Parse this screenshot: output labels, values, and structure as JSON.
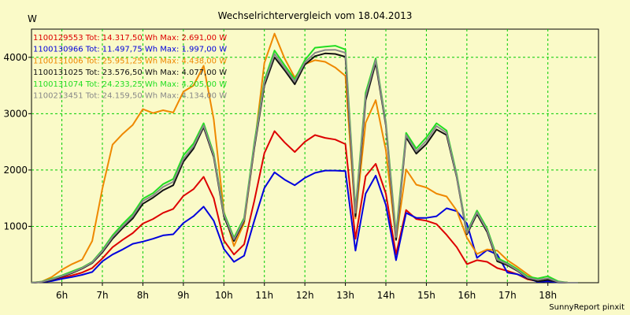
{
  "chart_data": {
    "type": "line",
    "title": "Wechselrichtervergleich vom 18.04.2013",
    "ylabel": "W",
    "xlabel": "",
    "x_ticks": [
      6,
      7,
      8,
      9,
      10,
      11,
      12,
      13,
      14,
      15,
      16,
      17,
      18
    ],
    "x_tick_labels": [
      "6h",
      "7h",
      "8h",
      "9h",
      "10h",
      "11h",
      "12h",
      "13h",
      "14h",
      "15h",
      "16h",
      "17h",
      "18h"
    ],
    "y_ticks": [
      1000,
      2000,
      3000,
      4000
    ],
    "y_tick_labels": [
      "1000",
      "2000",
      "3000",
      "4000"
    ],
    "xlim": [
      5.25,
      19.25
    ],
    "ylim": [
      0,
      4500
    ],
    "grid": true,
    "legend_position": "top-left",
    "x": [
      5.25,
      5.5,
      5.75,
      6.0,
      6.25,
      6.5,
      6.75,
      7.0,
      7.25,
      7.5,
      7.75,
      8.0,
      8.25,
      8.5,
      8.75,
      9.0,
      9.25,
      9.5,
      9.75,
      10.0,
      10.25,
      10.5,
      10.75,
      11.0,
      11.25,
      11.5,
      11.75,
      12.0,
      12.25,
      12.5,
      12.75,
      13.0,
      13.25,
      13.5,
      13.75,
      14.0,
      14.25,
      14.5,
      14.75,
      15.0,
      15.25,
      15.5,
      15.75,
      16.0,
      16.25,
      16.5,
      16.75,
      17.0,
      17.25,
      17.5,
      17.75,
      18.0,
      18.25,
      18.5,
      18.75
    ],
    "series": [
      {
        "name": "1100129553",
        "label": "1100129553 Tot: 14.317,50 Wh Max: 2.691,00 W",
        "color": "#dd0000",
        "values": [
          0,
          10,
          40,
          90,
          130,
          180,
          260,
          430,
          630,
          760,
          880,
          1050,
          1130,
          1240,
          1310,
          1540,
          1660,
          1880,
          1500,
          750,
          500,
          680,
          1450,
          2300,
          2690,
          2490,
          2320,
          2500,
          2620,
          2570,
          2540,
          2460,
          780,
          1890,
          2110,
          1580,
          500,
          1290,
          1130,
          1100,
          1040,
          850,
          630,
          330,
          400,
          370,
          260,
          210,
          150,
          60,
          25,
          40,
          15,
          0,
          0
        ]
      },
      {
        "name": "1100130966",
        "label": "1100130966 Tot: 11.497,75 Wh Max: 1.997,00 W",
        "color": "#0000dd",
        "values": [
          0,
          10,
          30,
          70,
          100,
          140,
          190,
          380,
          500,
          590,
          690,
          730,
          780,
          840,
          860,
          1060,
          1180,
          1350,
          1100,
          600,
          370,
          480,
          1100,
          1680,
          1960,
          1830,
          1730,
          1860,
          1950,
          1990,
          1990,
          1980,
          570,
          1580,
          1900,
          1380,
          400,
          1240,
          1150,
          1150,
          1180,
          1320,
          1270,
          1050,
          440,
          580,
          500,
          180,
          150,
          80,
          15,
          25,
          5,
          0,
          0
        ]
      },
      {
        "name": "1100131006",
        "label": "1100131006 Tot: 25.951,25 Wh Max: 4.438,00 W",
        "color": "#ee8800",
        "values": [
          0,
          20,
          100,
          230,
          330,
          410,
          740,
          1670,
          2450,
          2640,
          2800,
          3080,
          3010,
          3060,
          3020,
          3390,
          3500,
          3850,
          2900,
          1260,
          650,
          1060,
          2400,
          3900,
          4420,
          3980,
          3640,
          3880,
          3950,
          3920,
          3820,
          3670,
          1140,
          2840,
          3240,
          2350,
          760,
          2010,
          1740,
          1690,
          1580,
          1530,
          1280,
          800,
          510,
          590,
          570,
          400,
          280,
          150,
          30,
          55,
          10,
          0,
          0
        ]
      },
      {
        "name": "1100131025",
        "label": "1100131025 Tot: 23.576,50 Wh Max: 4.077,00 W",
        "color": "#111111",
        "values": [
          0,
          10,
          50,
          110,
          170,
          250,
          350,
          540,
          780,
          970,
          1140,
          1400,
          1510,
          1640,
          1730,
          2150,
          2380,
          2760,
          2230,
          1180,
          740,
          1100,
          2390,
          3500,
          4000,
          3770,
          3520,
          3870,
          4020,
          4070,
          4060,
          4010,
          1180,
          3240,
          3900,
          2790,
          760,
          2580,
          2290,
          2460,
          2720,
          2620,
          1870,
          860,
          1220,
          900,
          380,
          310,
          210,
          75,
          25,
          50,
          10,
          0,
          0
        ]
      },
      {
        "name": "1100131074",
        "label": "1100131074 Tot: 24.233,25 Wh Max: 4.205,00 W",
        "color": "#22dd22",
        "values": [
          0,
          20,
          70,
          130,
          200,
          270,
          370,
          580,
          840,
          1040,
          1220,
          1490,
          1590,
          1750,
          1840,
          2260,
          2470,
          2830,
          2290,
          1240,
          800,
          1150,
          2480,
          3590,
          4120,
          3860,
          3610,
          3950,
          4170,
          4190,
          4205,
          4140,
          1290,
          3370,
          3980,
          2850,
          860,
          2660,
          2380,
          2580,
          2830,
          2700,
          1920,
          900,
          1280,
          960,
          440,
          350,
          240,
          110,
          75,
          115,
          25,
          0,
          0
        ]
      },
      {
        "name": "1100213451",
        "label": "1100213451 Tot: 24.159,50 Wh Max: 4.134,00 W",
        "color": "#888888",
        "values": [
          0,
          15,
          60,
          120,
          180,
          260,
          360,
          560,
          810,
          1000,
          1180,
          1450,
          1550,
          1700,
          1790,
          2200,
          2420,
          2790,
          2260,
          1210,
          770,
          1120,
          2430,
          3550,
          4060,
          3810,
          3570,
          3910,
          4080,
          4130,
          4134,
          4080,
          1240,
          3310,
          3950,
          2820,
          810,
          2620,
          2330,
          2520,
          2780,
          2660,
          1890,
          880,
          1250,
          930,
          410,
          330,
          220,
          90,
          50,
          80,
          15,
          0,
          0
        ]
      }
    ],
    "footer": "SunnyReport pinxit"
  }
}
